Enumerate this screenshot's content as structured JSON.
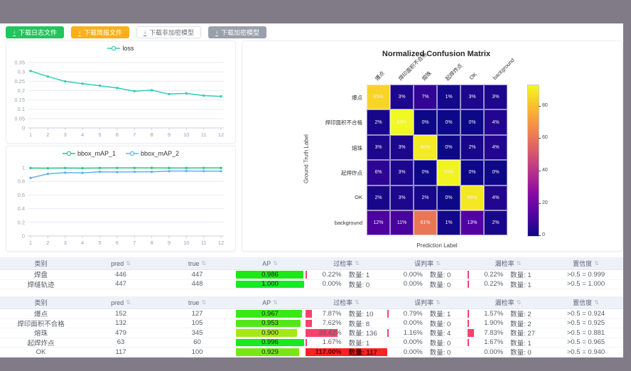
{
  "buttons": [
    {
      "label": "下载日志文件",
      "style": "green"
    },
    {
      "label": "下载简报文件",
      "style": "orange"
    },
    {
      "label": "下载非加密模型",
      "style": "plain"
    },
    {
      "label": "下载加密模型",
      "style": "gray"
    }
  ],
  "colors": {
    "frame_gray": "#817b87",
    "loss_line": "#2ecfb4",
    "map1_line": "#2bc48a",
    "map2_line": "#64b0f2",
    "rate_bar_red": "#f8426b",
    "rate_bar_full_red": "#fb2222",
    "header_bg": "#eef1f7"
  },
  "chart_data": [
    {
      "type": "line",
      "name": "loss-chart",
      "title": "",
      "xlabel": "",
      "ylabel": "",
      "x": [
        1,
        2,
        3,
        4,
        5,
        6,
        7,
        8,
        9,
        10,
        11,
        12
      ],
      "series": [
        {
          "name": "loss",
          "color": "#2ecfb4",
          "values": [
            0.305,
            0.275,
            0.249,
            0.237,
            0.226,
            0.214,
            0.197,
            0.202,
            0.181,
            0.185,
            0.173,
            0.169
          ]
        }
      ],
      "ylim": [
        0,
        0.35
      ],
      "yticks": [
        0,
        0.05,
        0.1,
        0.15,
        0.2,
        0.25,
        0.3,
        0.35
      ],
      "grid": true,
      "legend_position": "top"
    },
    {
      "type": "line",
      "name": "map-chart",
      "title": "",
      "xlabel": "",
      "ylabel": "",
      "x": [
        1,
        2,
        3,
        4,
        5,
        6,
        7,
        8,
        9,
        10,
        11,
        12
      ],
      "series": [
        {
          "name": "bbox_mAP_1",
          "color": "#2bc48a",
          "values": [
            0.995,
            0.993,
            0.996,
            0.993,
            0.996,
            0.997,
            0.997,
            0.998,
            0.996,
            0.996,
            0.997,
            0.997
          ]
        },
        {
          "name": "bbox_mAP_2",
          "color": "#64b0f2",
          "values": [
            0.85,
            0.91,
            0.928,
            0.925,
            0.94,
            0.937,
            0.94,
            0.94,
            0.95,
            0.952,
            0.95,
            0.949
          ]
        }
      ],
      "ylim": [
        0,
        1
      ],
      "yticks": [
        0,
        0.2,
        0.4,
        0.6,
        0.8,
        1
      ],
      "grid": true,
      "legend_position": "top"
    },
    {
      "type": "heatmap",
      "name": "confusion-matrix",
      "title": "Normalized Confusion Matrix",
      "xlabel": "Prediction Label",
      "ylabel": "Ground Truth Label",
      "categories": [
        "爆点",
        "焊印面积不合格",
        "熔珠",
        "起焊炸点",
        "OK",
        "background"
      ],
      "matrix_percent": [
        [
          85,
          3,
          7,
          1,
          3,
          3
        ],
        [
          2,
          93,
          0,
          0,
          0,
          4
        ],
        [
          3,
          3,
          90,
          0,
          2,
          4
        ],
        [
          6,
          3,
          0,
          92,
          0,
          0
        ],
        [
          2,
          3,
          2,
          0,
          89,
          4
        ],
        [
          12,
          11,
          61,
          1,
          13,
          2
        ]
      ],
      "colormap": "plasma",
      "colorbar_ticks": [
        0,
        20,
        40,
        60,
        80
      ],
      "vmax": 93
    }
  ],
  "tables": {
    "columns": [
      {
        "label": "类别",
        "sortable": false
      },
      {
        "label": "pred",
        "sortable": true
      },
      {
        "label": "true",
        "sortable": true
      },
      {
        "label": "AP",
        "sortable": true
      },
      {
        "label": "过检率",
        "sortable": true
      },
      {
        "label": "误判率",
        "sortable": true
      },
      {
        "label": "漏检率",
        "sortable": true
      },
      {
        "label": "置信度",
        "sortable": true
      }
    ],
    "table1": {
      "rows": [
        {
          "category": "焊盘",
          "pred": "446",
          "true": "447",
          "ap": "0.986",
          "ap_value": 0.986,
          "over_pct": "0.22%",
          "over_count": "数量: 1",
          "over_value": 0.22,
          "mis_pct": "0.00%",
          "mis_count": "数量: 0",
          "mis_value": 0,
          "miss_pct": "0.22%",
          "miss_count": "数量: 1",
          "miss_value": 0.22,
          "confidence": ">0.5 = 0.999"
        },
        {
          "category": "焊缝轨迹",
          "pred": "447",
          "true": "448",
          "ap": "1.000",
          "ap_value": 1.0,
          "over_pct": "0.00%",
          "over_count": "数量: 0",
          "over_value": 0,
          "mis_pct": "0.00%",
          "mis_count": "数量: 0",
          "mis_value": 0,
          "miss_pct": "0.22%",
          "miss_count": "数量: 1",
          "miss_value": 0.22,
          "confidence": ">0.5 = 1.000"
        }
      ]
    },
    "table2": {
      "rows": [
        {
          "category": "爆点",
          "pred": "152",
          "true": "127",
          "ap": "0.967",
          "ap_value": 0.967,
          "over_pct": "7.87%",
          "over_count": "数量: 10",
          "over_value": 7.87,
          "mis_pct": "0.79%",
          "mis_count": "数量: 1",
          "mis_value": 0.79,
          "miss_pct": "1.57%",
          "miss_count": "数量: 2",
          "miss_value": 1.57,
          "confidence": ">0.5 = 0.924"
        },
        {
          "category": "焊印面积不合格",
          "pred": "132",
          "true": "105",
          "ap": "0.953",
          "ap_value": 0.953,
          "over_pct": "7.62%",
          "over_count": "数量: 8",
          "over_value": 7.62,
          "mis_pct": "0.00%",
          "mis_count": "数量: 0",
          "mis_value": 0,
          "miss_pct": "1.90%",
          "miss_count": "数量: 2",
          "miss_value": 1.9,
          "confidence": ">0.5 = 0.925"
        },
        {
          "category": "熔珠",
          "pred": "479",
          "true": "345",
          "ap": "0.900",
          "ap_value": 0.9,
          "over_pct": "39.42%",
          "over_count": "数量: 136",
          "over_value": 39.42,
          "mis_pct": "1.16%",
          "mis_count": "数量: 4",
          "mis_value": 1.16,
          "miss_pct": "7.83%",
          "miss_count": "数量: 27",
          "miss_value": 7.83,
          "confidence": ">0.5 = 0.881"
        },
        {
          "category": "起焊炸点",
          "pred": "63",
          "true": "60",
          "ap": "0.996",
          "ap_value": 0.996,
          "over_pct": "1.67%",
          "over_count": "数量: 1",
          "over_value": 1.67,
          "mis_pct": "0.00%",
          "mis_count": "数量: 0",
          "mis_value": 0,
          "miss_pct": "1.67%",
          "miss_count": "数量: 1",
          "miss_value": 1.67,
          "confidence": ">0.5 = 0.965"
        },
        {
          "category": "OK",
          "pred": "117",
          "true": "100",
          "ap": "0.929",
          "ap_value": 0.929,
          "over_pct": "117.00%",
          "over_count": "数量: 117",
          "over_value": 117,
          "mis_pct": "0.00%",
          "mis_count": "数量: 0",
          "mis_value": 0,
          "miss_pct": "0.00%",
          "miss_count": "数量: 0",
          "miss_value": 0,
          "confidence": ">0.5 = 0.940"
        }
      ]
    }
  }
}
